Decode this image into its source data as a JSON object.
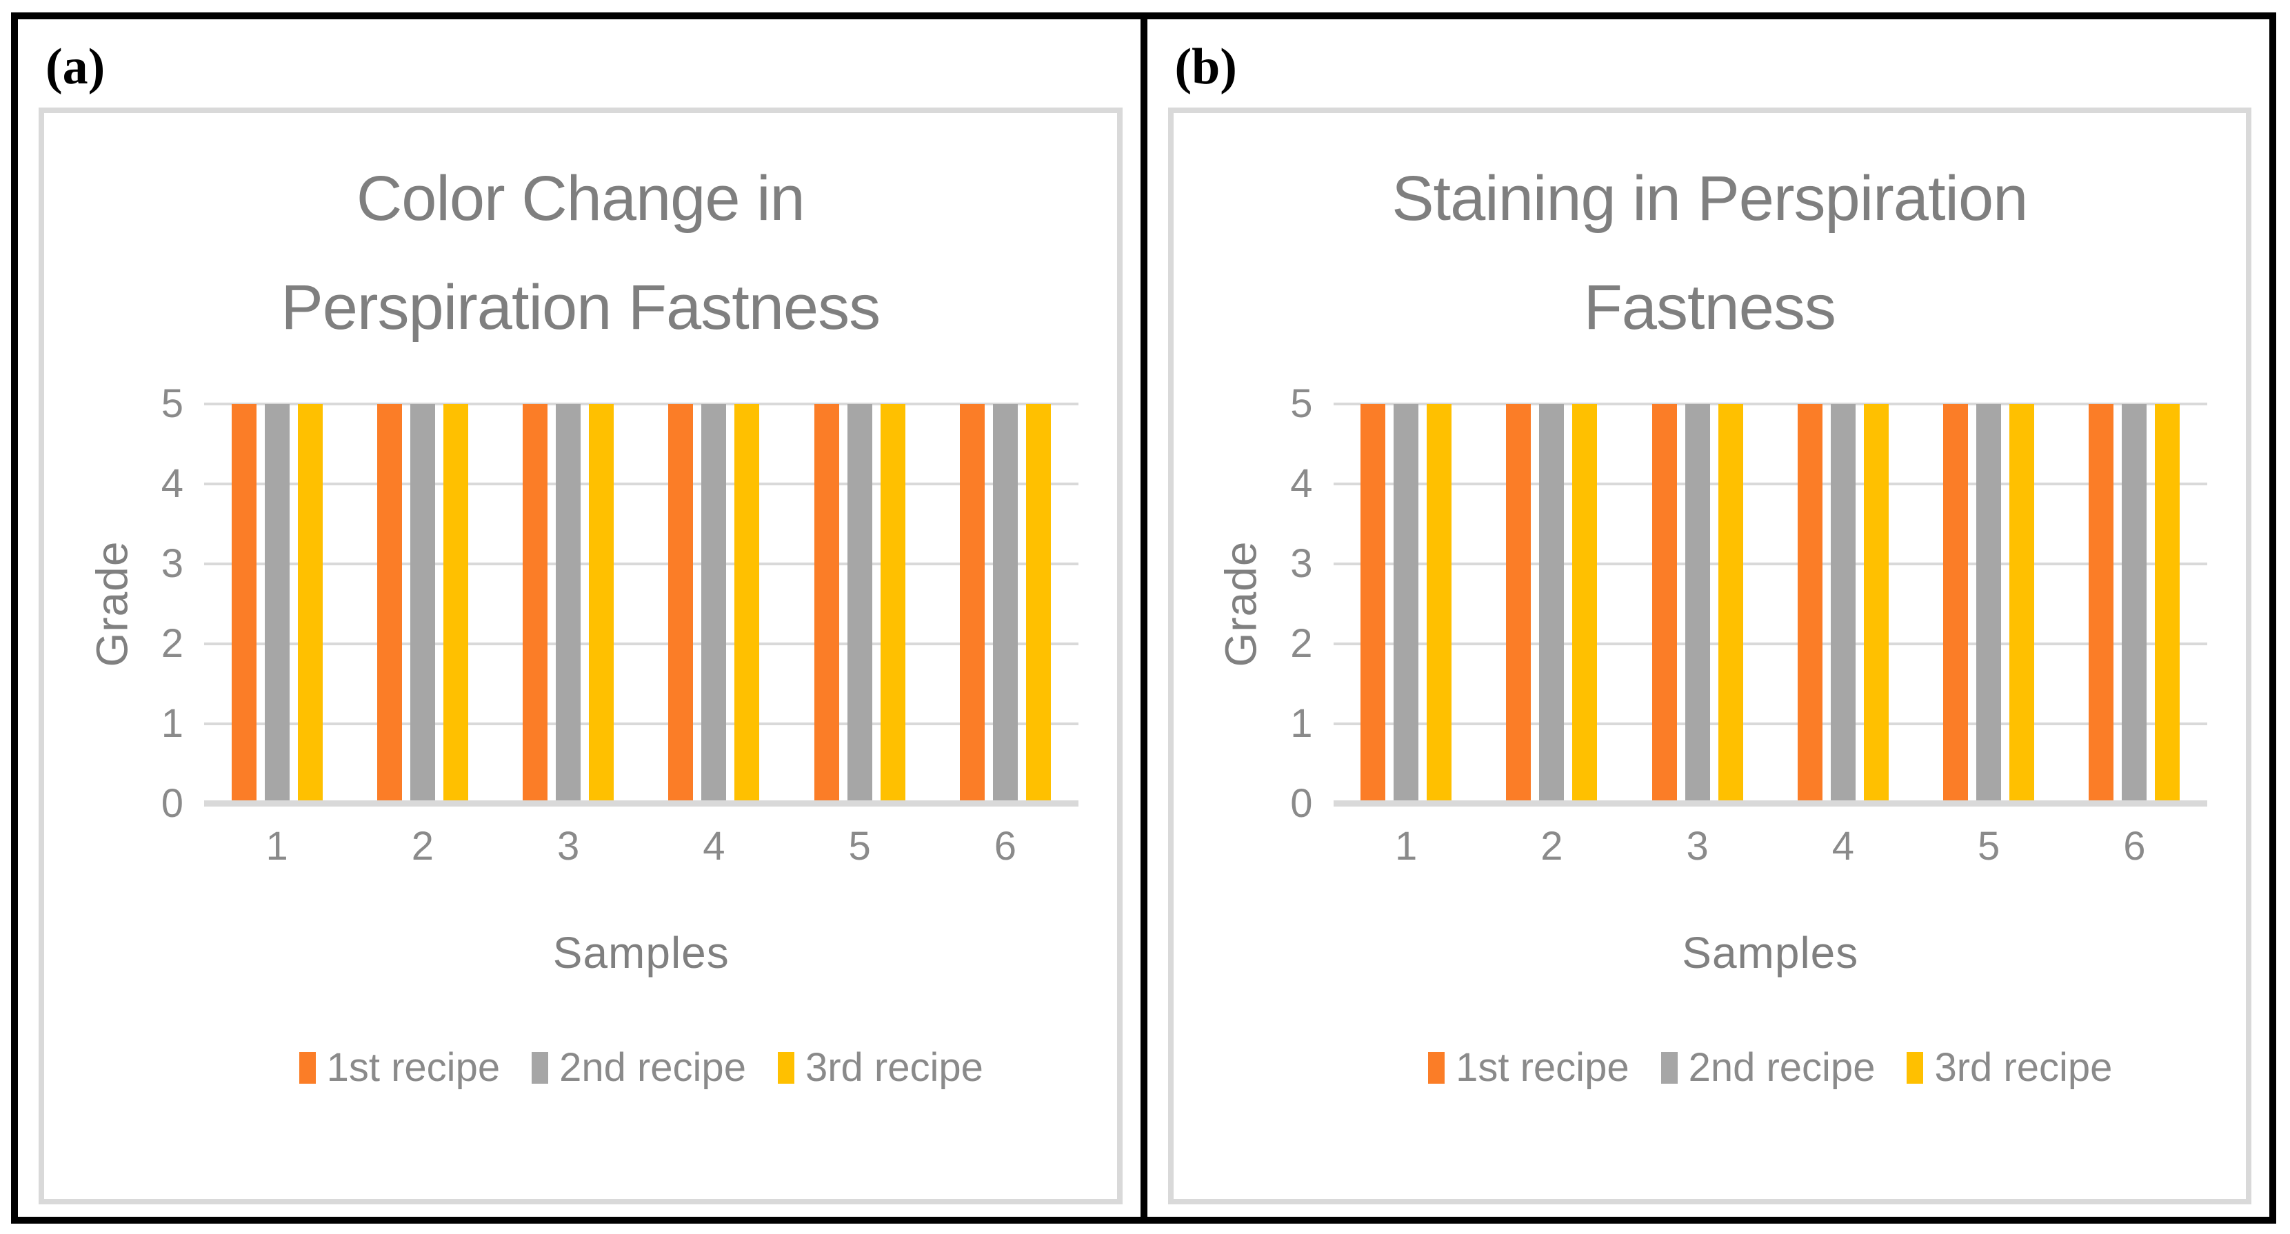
{
  "panels": [
    {
      "label": "(a)"
    },
    {
      "label": "(b)"
    }
  ],
  "chart_data": [
    {
      "type": "bar",
      "title": "Color Change in Perspiration Fastness",
      "title_lines": [
        "Color Change in",
        "Perspiration Fastness"
      ],
      "categories": [
        "1",
        "2",
        "3",
        "4",
        "5",
        "6"
      ],
      "series": [
        {
          "name": "1st recipe",
          "color": "#FB7D27",
          "values": [
            5,
            5,
            5,
            5,
            5,
            5
          ]
        },
        {
          "name": "2nd recipe",
          "color": "#A6A6A6",
          "values": [
            5,
            5,
            5,
            5,
            5,
            5
          ]
        },
        {
          "name": "3rd recipe",
          "color": "#FFC000",
          "values": [
            5,
            5,
            5,
            5,
            5,
            5
          ]
        }
      ],
      "xlabel": "Samples",
      "ylabel": "Grade",
      "ylim": [
        0,
        5
      ],
      "yticks": [
        0,
        1,
        2,
        3,
        4,
        5
      ],
      "grid": true,
      "legend_position": "bottom"
    },
    {
      "type": "bar",
      "title": "Staining in Perspiration Fastness",
      "title_lines": [
        "Staining in Perspiration",
        "Fastness"
      ],
      "categories": [
        "1",
        "2",
        "3",
        "4",
        "5",
        "6"
      ],
      "series": [
        {
          "name": "1st recipe",
          "color": "#FB7D27",
          "values": [
            5,
            5,
            5,
            5,
            5,
            5
          ]
        },
        {
          "name": "2nd recipe",
          "color": "#A6A6A6",
          "values": [
            5,
            5,
            5,
            5,
            5,
            5
          ]
        },
        {
          "name": "3rd recipe",
          "color": "#FFC000",
          "values": [
            5,
            5,
            5,
            5,
            5,
            5
          ]
        }
      ],
      "xlabel": "Samples",
      "ylabel": "Grade",
      "ylim": [
        0,
        5
      ],
      "yticks": [
        0,
        1,
        2,
        3,
        4,
        5
      ],
      "grid": true,
      "legend_position": "bottom"
    }
  ],
  "colors": {
    "series_orange": "#FB7D27",
    "series_gray": "#A6A6A6",
    "series_yellow": "#FFC000",
    "title_text": "#7F7F7F",
    "axis_text": "#8A8A8A",
    "gridline": "#D9D9D9",
    "card_border": "#D9D9D9",
    "frame_border": "#000000"
  }
}
